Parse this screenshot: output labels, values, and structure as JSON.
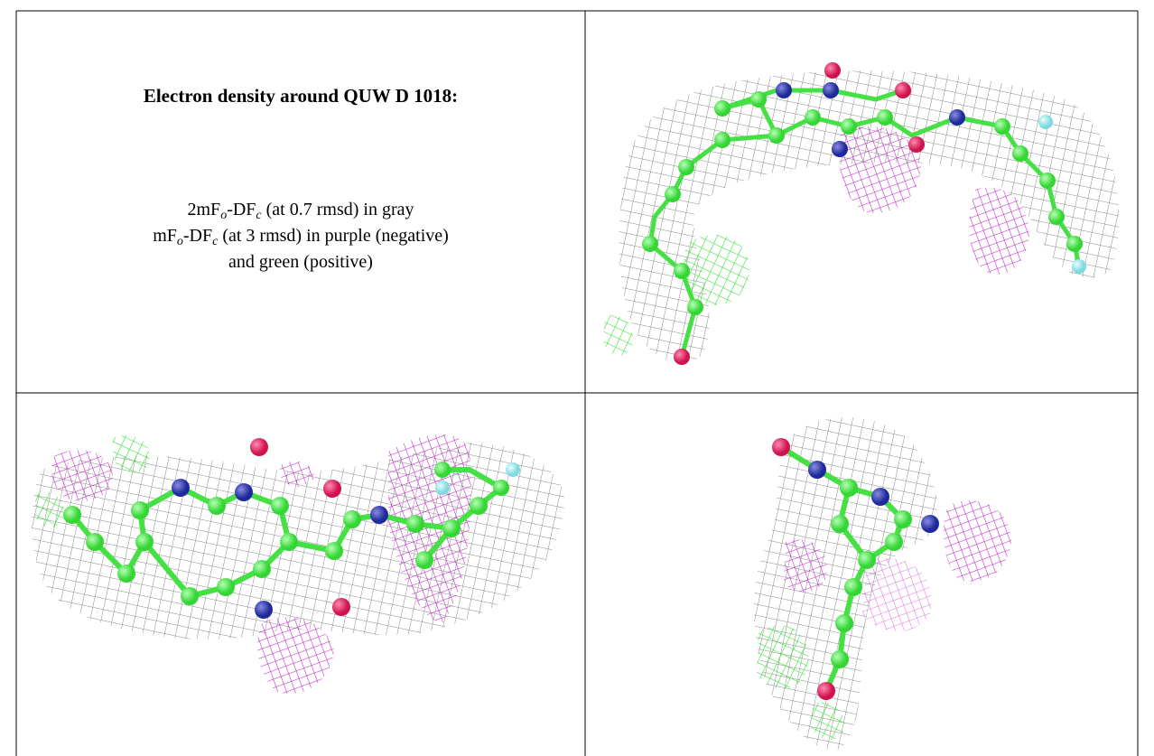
{
  "legend": {
    "title": "Electron density around QUW D 1018:",
    "lines": [
      [
        "2mF",
        "o",
        "-DF",
        "c",
        " (at 0.7 rmsd) in gray"
      ],
      [
        "mF",
        "o",
        "-DF",
        "c",
        " (at 3 rmsd) in purple (negative)"
      ],
      [
        "and green (positive)"
      ]
    ]
  }
}
